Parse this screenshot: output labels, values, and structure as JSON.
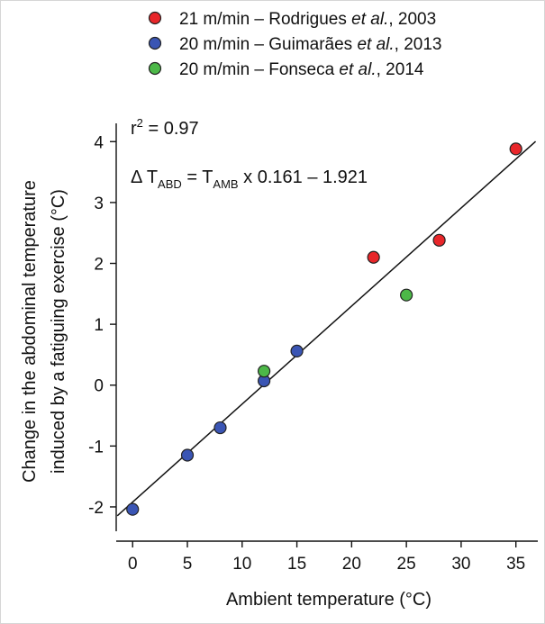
{
  "chart_data": {
    "type": "scatter",
    "xlabel": "Ambient temperature (°C)",
    "ylabel_line1": "Change in the abdominal temperature",
    "ylabel_line2": "induced by a fatiguing exercise (°C)",
    "xlim": [
      -1.5,
      37
    ],
    "ylim": [
      -2.4,
      4.3
    ],
    "xticks": [
      0,
      5,
      10,
      15,
      20,
      25,
      30,
      35
    ],
    "yticks": [
      -2,
      -1,
      0,
      1,
      2,
      3,
      4
    ],
    "grid": false,
    "legend_position": "top",
    "legend": [
      {
        "speed": "21 m/min – Rodrigues ",
        "author_suffix": "et al.",
        "year": ", 2003",
        "color": "#e8262a"
      },
      {
        "speed": "20 m/min – Guimarães ",
        "author_suffix": "et al.",
        "year": ", 2013",
        "color": "#3a55b4"
      },
      {
        "speed": "20 m/min – Fonseca ",
        "author_suffix": "et al.",
        "year": ", 2014",
        "color": "#4cb848"
      }
    ],
    "series": [
      {
        "name": "21 m/min – Rodrigues et al., 2003",
        "color": "#e8262a",
        "points": [
          {
            "x": 22,
            "y": 2.1
          },
          {
            "x": 28,
            "y": 2.38
          },
          {
            "x": 35,
            "y": 3.88
          }
        ]
      },
      {
        "name": "20 m/min – Guimarães et al., 2013",
        "color": "#3a55b4",
        "points": [
          {
            "x": 0,
            "y": -2.04
          },
          {
            "x": 5,
            "y": -1.15
          },
          {
            "x": 8,
            "y": -0.7
          },
          {
            "x": 12,
            "y": 0.07
          },
          {
            "x": 15,
            "y": 0.56
          }
        ]
      },
      {
        "name": "20 m/min – Fonseca et al., 2014",
        "color": "#4cb848",
        "points": [
          {
            "x": 12,
            "y": 0.23
          },
          {
            "x": 25,
            "y": 1.48
          }
        ]
      }
    ],
    "fit_line": {
      "slope": 0.161,
      "intercept": -1.921
    },
    "annotations": {
      "r2_prefix": "r",
      "r2_sup": "2",
      "r2_value": " = 0.97",
      "eq_delta": "Δ T",
      "eq_sub1": "ABD",
      "eq_mid": " = T",
      "eq_sub2": "AMB",
      "eq_tail": " x 0.161 – 1.921"
    }
  }
}
